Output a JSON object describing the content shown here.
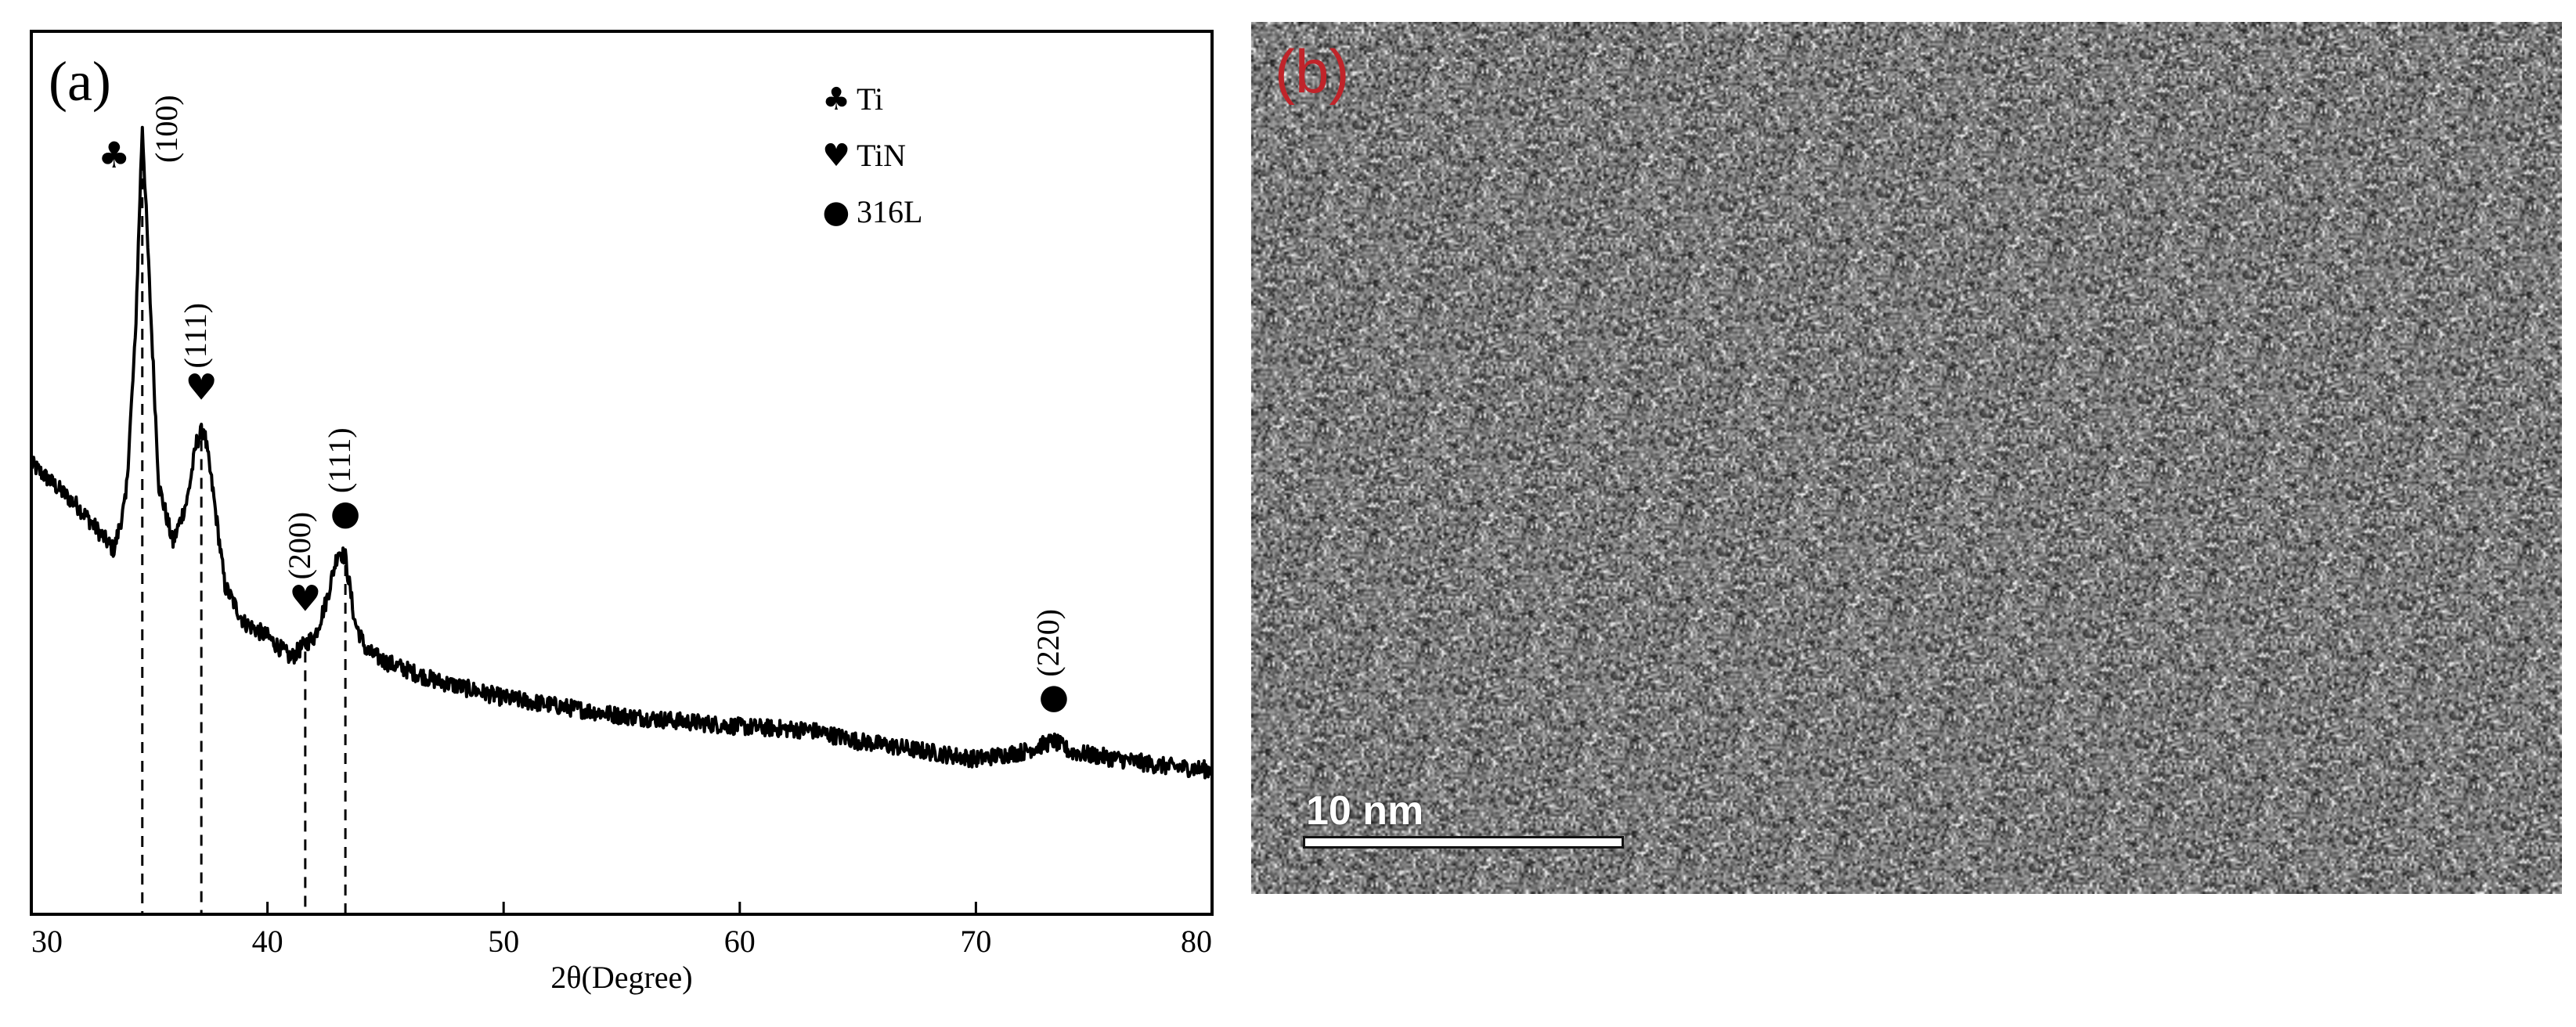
{
  "panels": {
    "a": {
      "label": "(a)"
    },
    "b": {
      "label": "(b)",
      "label_color": "#c0242a",
      "scale_bar_text": "10 nm"
    }
  },
  "legend": [
    {
      "symbol": "♣",
      "symbol_name": "club-icon",
      "text": "Ti"
    },
    {
      "symbol": "♥",
      "symbol_name": "heart-icon",
      "text": "TiN"
    },
    {
      "symbol": "●",
      "symbol_name": "circle-icon",
      "text": "316L"
    }
  ],
  "chart_data": [
    {
      "type": "line",
      "title": "",
      "xlabel": "2θ(Degree)",
      "ylabel": "",
      "xlim": [
        30,
        80
      ],
      "xticks": [
        30,
        40,
        50,
        60,
        70,
        80
      ],
      "ylim": [
        0,
        100
      ],
      "grid": false,
      "legend_position": "top-right",
      "line_color": "#000000",
      "series": [
        {
          "x": [
            30,
            31,
            32,
            33,
            33.5,
            34.0,
            34.4,
            34.7,
            35.0,
            35.4,
            36.0,
            36.6,
            37.0,
            37.3,
            37.7,
            38.2,
            39.0,
            40.0,
            41.0,
            41.6,
            42.0,
            42.5,
            43.0,
            43.3,
            43.7,
            44.2,
            45,
            47,
            50,
            55,
            60,
            63,
            65,
            68,
            70,
            72,
            73.3,
            74,
            76,
            78,
            80
          ],
          "y": [
            53,
            50,
            47,
            43,
            41,
            48,
            70,
            100,
            78,
            50,
            42,
            48,
            56,
            58,
            49,
            36,
            31,
            29,
            26,
            28,
            29,
            34,
            41,
            40,
            31,
            27,
            25.5,
            23,
            20.5,
            18,
            16.5,
            16,
            14.5,
            13,
            12,
            13,
            14.5,
            13,
            12,
            11,
            10.5
          ]
        }
      ],
      "peaks": [
        {
          "x": 34.7,
          "hkl": "(100)",
          "phase": "Ti",
          "symbol": "♣"
        },
        {
          "x": 37.2,
          "hkl": "(111)",
          "phase": "TiN",
          "symbol": "♥"
        },
        {
          "x": 41.6,
          "hkl": "(200)",
          "phase": "TiN",
          "symbol": "♥"
        },
        {
          "x": 43.3,
          "hkl": "(111)",
          "phase": "316L",
          "symbol": "●"
        },
        {
          "x": 73.3,
          "hkl": "(220)",
          "phase": "316L",
          "symbol": "●"
        }
      ]
    }
  ]
}
